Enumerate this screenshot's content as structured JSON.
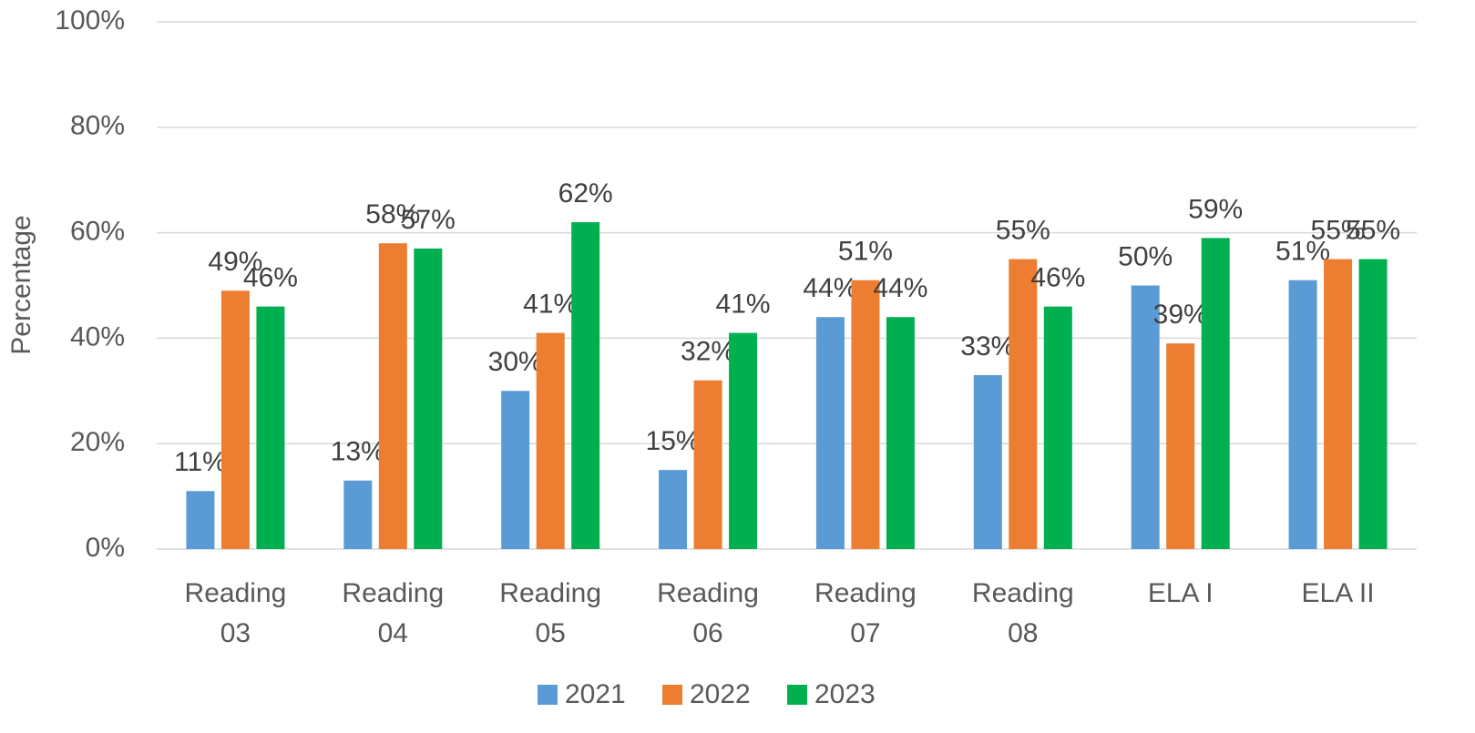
{
  "chart_data": {
    "type": "bar",
    "y_label": "Percentage",
    "categories": [
      "Reading 03",
      "Reading 04",
      "Reading 05",
      "Reading 06",
      "Reading 07",
      "Reading 08",
      "ELA I",
      "ELA II"
    ],
    "series": [
      {
        "name": "2021",
        "color": "#5b9bd5",
        "values": [
          11,
          13,
          30,
          15,
          44,
          33,
          50,
          51
        ],
        "value_labels": [
          "11%",
          "13%",
          "30%",
          "15%",
          "44%",
          "33%",
          "50%",
          "51%"
        ]
      },
      {
        "name": "2022",
        "color": "#ed7d31",
        "values": [
          49,
          58,
          41,
          32,
          51,
          55,
          39,
          55
        ],
        "value_labels": [
          "49%",
          "58%",
          "41%",
          "32%",
          "51%",
          "55%",
          "39%",
          "55%"
        ]
      },
      {
        "name": "2023",
        "color": "#00b050",
        "values": [
          46,
          57,
          62,
          41,
          44,
          46,
          59,
          55
        ],
        "value_labels": [
          "46%",
          "57%",
          "62%",
          "41%",
          "44%",
          "46%",
          "59%",
          "55%"
        ]
      }
    ],
    "ylim": [
      0,
      100
    ],
    "yticks": [
      {
        "value": 0,
        "label": "0%"
      },
      {
        "value": 20,
        "label": "20%"
      },
      {
        "value": 40,
        "label": "40%"
      },
      {
        "value": 60,
        "label": "60%"
      },
      {
        "value": 80,
        "label": "80%"
      },
      {
        "value": 100,
        "label": "100%"
      }
    ],
    "grid": true,
    "legend": "bottom"
  }
}
